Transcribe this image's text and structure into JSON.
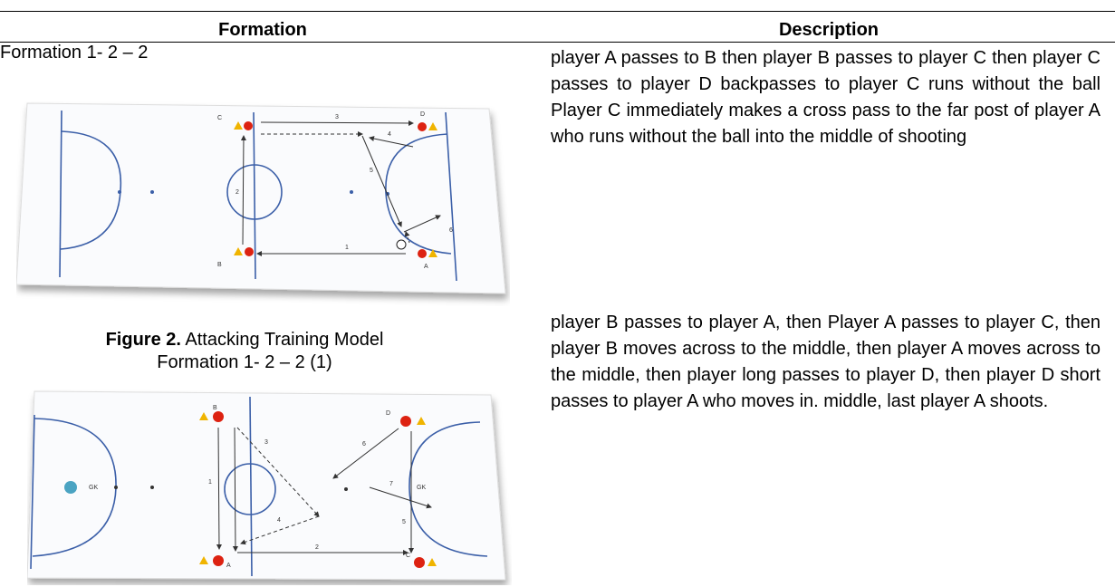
{
  "table": {
    "headers": [
      "Formation",
      "Description"
    ],
    "rows": [
      {
        "formation": "Formation 1- 2 – 2",
        "figure": {
          "labels": [
            "C",
            "D",
            "B",
            "A",
            "3",
            "4",
            "5",
            "6",
            "1",
            "2"
          ]
        },
        "caption": {
          "label": "Figure 2.",
          "text": "Attacking Training Model Formation 1- 2 – 2 (1)"
        },
        "description": "player A passes to B then player B passes to player C then player C passes to player D backpasses to player C runs without the ball Player C immediately makes a cross pass to the far post of player A who runs without the ball into the middle of shooting"
      },
      {
        "figure": {
          "labels": [
            "B",
            "D",
            "A",
            "C",
            "GK",
            "GK",
            "1",
            "2",
            "3",
            "4",
            "5",
            "6",
            "7"
          ]
        },
        "description": "player B passes to player A, then Player A passes to player C, then player B moves across to the middle, then player A moves across to the middle, then player long passes to player D, then player D short passes to player A who moves in. middle, last player A shoots."
      }
    ]
  }
}
